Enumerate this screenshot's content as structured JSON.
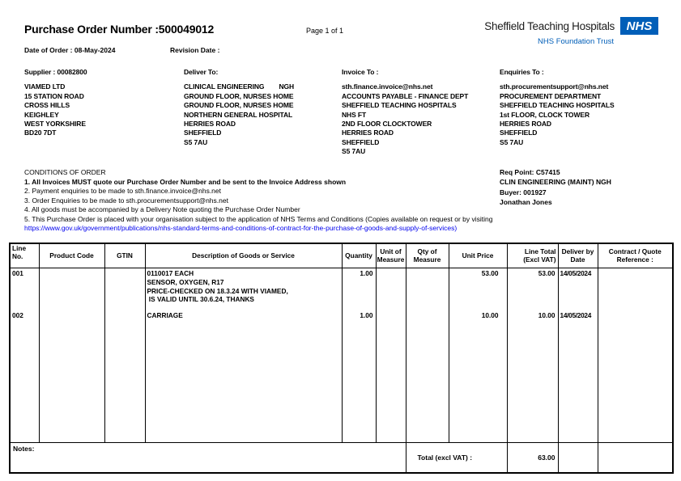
{
  "colors": {
    "nhs_blue": "#005EB8",
    "link_blue": "#0000EE"
  },
  "header": {
    "po_label": "Purchase Order Number :",
    "po_number": "500049012",
    "page_info": "Page 1 of 1",
    "date_of_order_label": "Date of Order :",
    "date_of_order": "08-May-2024",
    "revision_date_label": "Revision Date :",
    "logo": {
      "trust_name": "Sheffield Teaching Hospitals",
      "nhs": "NHS",
      "foundation_trust": "NHS Foundation Trust"
    }
  },
  "addresses": {
    "supplier": {
      "heading": "Supplier : 00082800",
      "lines": [
        "VIAMED LTD",
        "15 STATION ROAD",
        "CROSS HILLS",
        "KEIGHLEY",
        "WEST YORKSHIRE",
        "BD20 7DT"
      ]
    },
    "deliver_to": {
      "heading": "Deliver To:",
      "lines": [
        "CLINICAL ENGINEERING        NGH",
        "GROUND FLOOR, NURSES HOME",
        "GROUND FLOOR, NURSES HOME",
        "NORTHERN GENERAL HOSPITAL",
        "HERRIES ROAD",
        "SHEFFIELD",
        "S5 7AU"
      ]
    },
    "invoice_to": {
      "heading": "Invoice To :",
      "lines": [
        "sth.finance.invoice@nhs.net",
        "ACCOUNTS PAYABLE - FINANCE DEPT",
        "SHEFFIELD TEACHING HOSPITALS",
        "NHS FT",
        "2ND FLOOR CLOCKTOWER",
        "HERRIES ROAD",
        "SHEFFIELD",
        "S5 7AU"
      ]
    },
    "enquiries_to": {
      "heading": "Enquiries To :",
      "lines": [
        "sth.procurementsupport@nhs.net",
        "PROCUREMENT DEPARTMENT",
        "SHEFFIELD TEACHING HOSPITALS",
        "1st FLOOR, CLOCK TOWER",
        "HERRIES ROAD",
        "SHEFFIELD",
        "S5 7AU"
      ]
    }
  },
  "conditions": {
    "title": "CONDITIONS OF ORDER",
    "line1": "1. All Invoices MUST quote our Purchase Order Number and be sent to the Invoice Address shown",
    "line2": "2. Payment enquiries to be made to sth.finance.invoice@nhs.net",
    "line3": "3. Order Enquiries to be made to sth.procurementsupport@nhs.net",
    "line4": "4. All goods must be accompanied by a Delivery Note quoting the Purchase Order Number",
    "line5": "5. This Purchase Order is placed with your organisation subject to the application of NHS Terms and Conditions (Copies available on request or by visiting",
    "link": "https://www.gov.uk/government/publications/nhs-standard-terms-and-conditions-of-contract-for-the-purchase-of-goods-and-supply-of-services)"
  },
  "req_block": {
    "req_point": "Req Point: C57415",
    "department": "CLIN ENGINEERING (MAINT) NGH",
    "buyer": "Buyer: 001927",
    "buyer_name": "Jonathan Jones"
  },
  "table": {
    "headers": {
      "line_no": "Line No.",
      "product_code": "Product Code",
      "gtin": "GTIN",
      "description": "Description of Goods or Service",
      "quantity": "Quantity",
      "unit_of_measure": "Unit of Measure",
      "qty_of_measure": "Qty of Measure",
      "unit_price": "Unit Price",
      "line_total": "Line Total (Excl VAT)",
      "deliver_by": "Deliver by Date",
      "contract_ref": "Contract / Quote Reference :"
    },
    "rows": [
      {
        "line_no": "001",
        "product_code": "",
        "gtin": "",
        "description": [
          "0110017 EACH",
          "SENSOR, OXYGEN, R17",
          "PRICE-CHECKED ON 18.3.24 WITH VIAMED,",
          " IS VALID UNTIL 30.6.24, THANKS"
        ],
        "quantity": "1.00",
        "unit_of_measure": "",
        "qty_of_measure": "",
        "unit_price": "53.00",
        "line_total": "53.00",
        "deliver_by": "14/05/2024",
        "contract_ref": ""
      },
      {
        "line_no": "002",
        "product_code": "",
        "gtin": "",
        "description": [
          "CARRIAGE"
        ],
        "quantity": "1.00",
        "unit_of_measure": "",
        "qty_of_measure": "",
        "unit_price": "10.00",
        "line_total": "10.00",
        "deliver_by": "14/05/2024",
        "contract_ref": ""
      }
    ],
    "notes_label": "Notes:",
    "total_label": "Total (excl VAT) :",
    "total_value": "63.00"
  }
}
